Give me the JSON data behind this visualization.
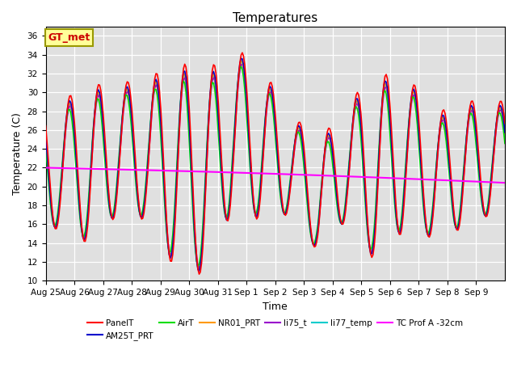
{
  "title": "Temperatures",
  "xlabel": "Time",
  "ylabel": "Temperature (C)",
  "ylim": [
    10,
    37
  ],
  "yticks": [
    10,
    12,
    14,
    16,
    18,
    20,
    22,
    24,
    26,
    28,
    30,
    32,
    34,
    36
  ],
  "bg_color": "#e0e0e0",
  "series": {
    "PanelT": {
      "color": "#ff0000",
      "lw": 1.2
    },
    "AM25T_PRT": {
      "color": "#0000cc",
      "lw": 1.2
    },
    "AirT": {
      "color": "#00dd00",
      "lw": 1.2
    },
    "NR01_PRT": {
      "color": "#ff9900",
      "lw": 1.2
    },
    "li75_t": {
      "color": "#9900cc",
      "lw": 1.2
    },
    "li77_temp": {
      "color": "#00cccc",
      "lw": 1.2
    },
    "TC Prof A -32cm": {
      "color": "#ff00ff",
      "lw": 1.5
    }
  },
  "xtick_labels": [
    "Aug 25",
    "Aug 26",
    "Aug 27",
    "Aug 28",
    "Aug 29",
    "Aug 30",
    "Aug 31",
    "Sep 1",
    "Sep 2",
    "Sep 3",
    "Sep 4",
    "Sep 5",
    "Sep 6",
    "Sep 7",
    "Sep 8",
    "Sep 9"
  ],
  "annotation_text": "GT_met",
  "annotation_color": "#cc0000",
  "annotation_bg": "#ffff99",
  "annotation_border": "#999900"
}
